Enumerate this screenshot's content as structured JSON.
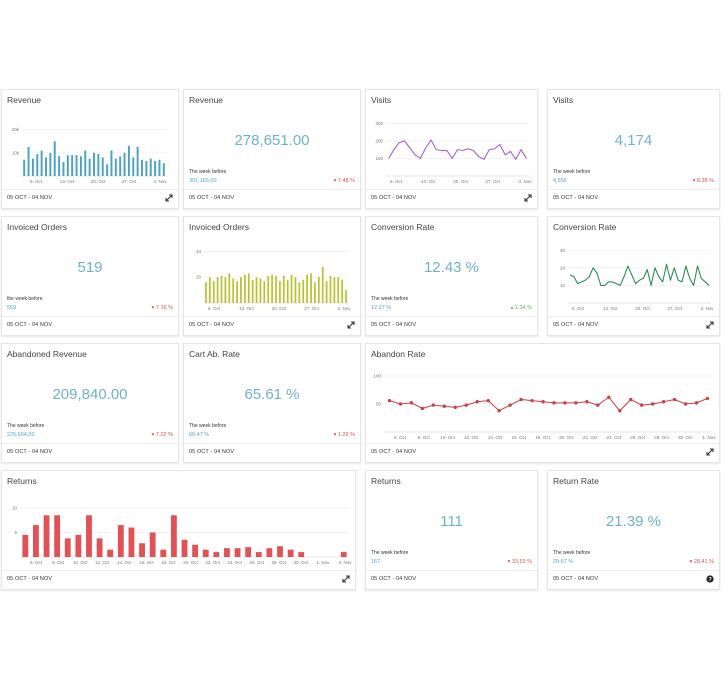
{
  "date_range": "05 OCT - 04 NOV",
  "icons": {
    "expand": "expand-icon",
    "help": "help-icon",
    "caret_down": "caret-down-icon",
    "caret_up": "caret-up-icon"
  },
  "colors": {
    "revenue": "#4ea2c1",
    "visits": "#a55fd1",
    "orders": "#b7c332",
    "conversion": "#2e8b57",
    "abandon": "#c8414b",
    "returns": "#e05255",
    "value": "#6fb1cc"
  },
  "cards": {
    "revenue_chart": {
      "title": "Revenue"
    },
    "revenue_kpi": {
      "title": "Revenue",
      "value": "278,651.00",
      "prev_label": "The week before",
      "prev_value": "301,165.00",
      "delta": "7.48 %"
    },
    "visits_chart": {
      "title": "Visits"
    },
    "visits_kpi": {
      "title": "Visits",
      "value": "4,174",
      "prev_label": "The week before",
      "prev_value": "4,556",
      "delta": "8.38 %"
    },
    "orders_kpi": {
      "title": "Invoiced Orders",
      "value": "519",
      "prev_label": "the week before",
      "prev_value": "559",
      "delta": "7.16 %"
    },
    "orders_chart": {
      "title": "Invoiced Orders"
    },
    "conversion_kpi": {
      "title": "Conversion Rate",
      "value": "12.43 %",
      "prev_label": "The week before",
      "prev_value": "12.27 %",
      "delta": "1.34 %"
    },
    "conversion_chart": {
      "title": "Conversion Rate"
    },
    "abandoned_revenue_kpi": {
      "title": "Abandoned Revenue",
      "value": "209,840.00",
      "prev_label": "The week before",
      "prev_value": "225,694.00",
      "delta": "7.02 %"
    },
    "cart_ab_rate_kpi": {
      "title": "Cart Ab. Rate",
      "value": "65.61 %",
      "prev_label": "The week before",
      "prev_value": "66.47 %",
      "delta": "1.29 %"
    },
    "abandon_rate_chart": {
      "title": "Abandon Rate"
    },
    "returns_chart": {
      "title": "Returns"
    },
    "returns_kpi": {
      "title": "Returns",
      "value": "111",
      "prev_label": "The week before",
      "prev_value": "167",
      "delta": "33.53 %"
    },
    "return_rate_kpi": {
      "title": "Return Rate",
      "value": "21.39 %",
      "prev_label": "The week before",
      "prev_value": "29.67 %",
      "delta": "28.41 %"
    }
  },
  "chart_data": [
    {
      "id": "revenue",
      "type": "bar",
      "ylim": [
        0,
        25000
      ],
      "yticks": [
        "10k",
        "20k"
      ],
      "xticks": [
        "6. Oct",
        "13. Oct",
        "20. Oct",
        "27. Oct",
        "3. Nov"
      ],
      "values": [
        7000,
        12500,
        7500,
        9500,
        11000,
        8000,
        10000,
        15000,
        8500,
        6000,
        9000,
        9000,
        9000,
        8500,
        11000,
        7500,
        10000,
        9500,
        8000,
        5000,
        11000,
        7500,
        8500,
        10000,
        13000,
        8000,
        12500,
        7000,
        6500,
        7500,
        6500,
        7000,
        5500
      ]
    },
    {
      "id": "visits",
      "type": "line",
      "ylim": [
        0,
        330
      ],
      "yticks": [
        "100",
        "200",
        "300"
      ],
      "xticks": [
        "6. Oct",
        "13. Oct",
        "20. Oct",
        "27. Oct",
        "3. Nov"
      ],
      "values": [
        100,
        150,
        190,
        200,
        160,
        120,
        100,
        160,
        205,
        150,
        145,
        145,
        100,
        150,
        145,
        155,
        145,
        110,
        95,
        150,
        155,
        180,
        120,
        140,
        95,
        150,
        100
      ]
    },
    {
      "id": "orders",
      "type": "bar",
      "ylim": [
        0,
        45
      ],
      "yticks": [
        "20",
        "40"
      ],
      "xticks": [
        "6. Oct",
        "13. Oct",
        "20. Oct",
        "27. Oct",
        "3. Nov"
      ],
      "values": [
        16,
        20,
        17,
        20,
        21,
        20,
        23,
        19,
        17,
        20,
        22,
        23,
        18,
        20,
        19,
        17,
        21,
        22,
        21,
        17,
        21,
        18,
        22,
        20,
        16,
        18,
        22,
        23,
        16,
        20,
        28,
        17,
        21,
        20,
        20,
        18,
        10
      ]
    },
    {
      "id": "conversion",
      "type": "line",
      "ylim": [
        0,
        33
      ],
      "yticks": [
        "10",
        "20",
        "30"
      ],
      "xticks": [
        "6. Oct",
        "13. Oct",
        "20. Oct",
        "27. Oct",
        "3. Nov"
      ],
      "values": [
        16,
        15,
        11,
        12,
        13,
        15,
        20,
        17,
        10,
        10,
        12,
        12,
        11,
        10,
        15,
        21,
        16,
        11,
        13,
        14,
        19,
        10,
        20,
        15,
        12,
        22,
        13,
        20,
        13,
        12,
        21,
        14,
        10,
        21,
        14,
        12,
        10
      ]
    },
    {
      "id": "abandon_rate",
      "type": "line",
      "ylim": [
        0,
        100
      ],
      "yticks": [
        "50",
        "100"
      ],
      "xticks": [
        "6. Oct",
        "8. Oct",
        "10. Oct",
        "12. Oct",
        "14. Oct",
        "16. Oct",
        "18. Oct",
        "20. Oct",
        "22. Oct",
        "24. Oct",
        "26. Oct",
        "28. Oct",
        "30. Oct",
        "1. Nov"
      ],
      "values": [
        56,
        50,
        52,
        42,
        48,
        46,
        44,
        48,
        54,
        56,
        38,
        48,
        58,
        56,
        54,
        52,
        52,
        52,
        54,
        48,
        62,
        38,
        58,
        48,
        50,
        54,
        58,
        50,
        52,
        60
      ]
    },
    {
      "id": "returns",
      "type": "bar",
      "ylim": [
        0,
        11
      ],
      "yticks": [
        "5",
        "10"
      ],
      "xticks": [
        "6. Oct",
        "8. Oct",
        "10. Oct",
        "12. Oct",
        "14. Oct",
        "16. Oct",
        "18. Oct",
        "20. Oct",
        "22. Oct",
        "24. Oct",
        "26. Oct",
        "28. Oct",
        "30. Oct",
        "1. Nov",
        "3. Nov"
      ],
      "values": [
        4.5,
        6.5,
        8.5,
        8.5,
        3.8,
        4.5,
        8.5,
        3.8,
        1.5,
        6.5,
        6,
        2.8,
        5,
        1.5,
        8.5,
        3.5,
        2.5,
        1.5,
        1,
        1.8,
        1.8,
        2,
        1,
        1.8,
        2.2,
        1.5,
        1,
        0,
        0,
        0,
        1
      ]
    }
  ]
}
